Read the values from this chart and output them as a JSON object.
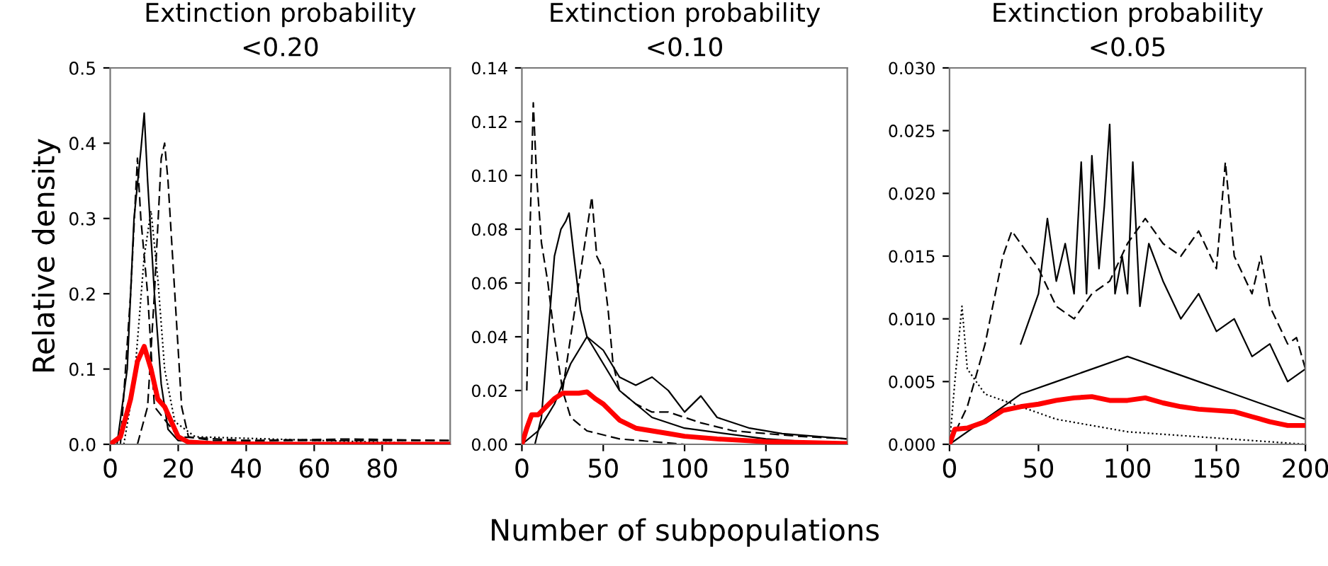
{
  "chart_data": [
    {
      "type": "line",
      "title": "Extinction probability\n<0.20",
      "ylabel": "Relative density",
      "xlim": [
        0,
        100
      ],
      "xticks": [
        0,
        20,
        40,
        60,
        80
      ],
      "ylim": [
        0,
        0.5
      ],
      "yticks": [
        {
          "value": 0,
          "label": "0.0"
        },
        0.1,
        0.2,
        0.3,
        0.4,
        0.5
      ],
      "series": [
        {
          "color": "#000000",
          "line_style": "solid",
          "x": [
            2,
            5,
            7,
            9,
            10,
            11,
            13,
            15,
            17,
            20,
            30,
            100
          ],
          "values": [
            0,
            0.1,
            0.3,
            0.39,
            0.44,
            0.35,
            0.2,
            0.08,
            0.02,
            0.005,
            0.003,
            0
          ]
        },
        {
          "color": "#000000",
          "line_style": "dashed",
          "x": [
            8,
            11,
            13,
            15,
            16,
            17,
            19,
            21,
            23,
            30,
            60,
            100
          ],
          "values": [
            0,
            0.05,
            0.2,
            0.38,
            0.4,
            0.35,
            0.2,
            0.05,
            0.01,
            0.005,
            0.005,
            0.005
          ]
        },
        {
          "color": "#000000",
          "line_style": "dotted",
          "x": [
            4,
            7,
            10,
            12,
            14,
            16,
            19,
            25,
            40,
            100
          ],
          "values": [
            0,
            0.08,
            0.25,
            0.31,
            0.22,
            0.1,
            0.03,
            0.01,
            0.008,
            0
          ]
        },
        {
          "color": "#000000",
          "line_style": "dashed",
          "x": [
            3,
            6,
            8,
            9,
            11,
            13,
            20,
            40,
            70,
            100
          ],
          "values": [
            0,
            0.2,
            0.38,
            0.3,
            0.2,
            0.05,
            0.01,
            0.005,
            0.007,
            0.005
          ]
        },
        {
          "color": "#ff0000",
          "line_style": "solid",
          "x": [
            0,
            3,
            6,
            8,
            10,
            12,
            14,
            16,
            18,
            20,
            23,
            30,
            50,
            100
          ],
          "values": [
            0,
            0.01,
            0.06,
            0.11,
            0.13,
            0.1,
            0.06,
            0.05,
            0.03,
            0.01,
            0.003,
            0.001,
            0,
            0
          ]
        }
      ]
    },
    {
      "type": "line",
      "title": "Extinction probability\n<0.10",
      "xlabel": "Number of subpopulations",
      "xlim": [
        0,
        200
      ],
      "xticks": [
        0,
        50,
        100,
        150
      ],
      "ylim": [
        0,
        0.14
      ],
      "yticks": [
        {
          "value": 0,
          "label": "0.00"
        },
        0.02,
        0.04,
        0.06,
        0.08,
        {
          "value": 0.1,
          "label": "0.10"
        },
        0.12,
        0.14
      ],
      "series": [
        {
          "color": "#000000",
          "line_style": "dashed",
          "x": [
            3,
            5,
            7,
            9,
            12,
            16,
            20,
            25,
            30,
            40,
            60,
            100
          ],
          "values": [
            0.02,
            0.08,
            0.127,
            0.1,
            0.075,
            0.06,
            0.04,
            0.02,
            0.01,
            0.005,
            0.002,
            0
          ]
        },
        {
          "color": "#000000",
          "line_style": "dashed",
          "x": [
            25,
            30,
            35,
            40,
            43,
            46,
            50,
            53,
            56,
            60,
            70,
            80,
            90,
            100,
            110,
            130,
            150,
            170,
            200
          ],
          "values": [
            0.02,
            0.04,
            0.06,
            0.08,
            0.092,
            0.07,
            0.065,
            0.05,
            0.03,
            0.02,
            0.015,
            0.012,
            0.012,
            0.01,
            0.008,
            0.005,
            0.004,
            0.003,
            0.002
          ]
        },
        {
          "color": "#000000",
          "line_style": "solid",
          "x": [
            8,
            12,
            16,
            20,
            24,
            27,
            29,
            32,
            36,
            40,
            45,
            50,
            60,
            70,
            80,
            100,
            150,
            200
          ],
          "values": [
            0,
            0.01,
            0.04,
            0.07,
            0.08,
            0.083,
            0.086,
            0.07,
            0.05,
            0.04,
            0.035,
            0.03,
            0.02,
            0.015,
            0.01,
            0.006,
            0.002,
            0
          ]
        },
        {
          "color": "#000000",
          "line_style": "solid",
          "x": [
            0,
            10,
            20,
            30,
            40,
            50,
            60,
            70,
            80,
            90,
            100,
            110,
            120,
            140,
            160,
            180,
            200
          ],
          "values": [
            0,
            0.005,
            0.015,
            0.03,
            0.04,
            0.035,
            0.025,
            0.022,
            0.025,
            0.02,
            0.012,
            0.018,
            0.01,
            0.006,
            0.004,
            0.003,
            0.002
          ]
        },
        {
          "color": "#ff0000",
          "line_style": "solid",
          "x": [
            0,
            3,
            6,
            10,
            15,
            20,
            25,
            35,
            40,
            45,
            50,
            55,
            60,
            70,
            80,
            90,
            100,
            120,
            150,
            200
          ],
          "values": [
            0,
            0.006,
            0.011,
            0.011,
            0.014,
            0.017,
            0.019,
            0.019,
            0.0195,
            0.017,
            0.015,
            0.012,
            0.009,
            0.006,
            0.005,
            0.004,
            0.003,
            0.002,
            0.001,
            0.0003
          ]
        }
      ]
    },
    {
      "type": "line",
      "title": "Extinction probability\n<0.05",
      "xlim": [
        0,
        200
      ],
      "xticks": [
        0,
        50,
        100,
        150,
        200
      ],
      "ylim": [
        0,
        0.03
      ],
      "yticks": [
        {
          "value": 0,
          "label": "0.000"
        },
        {
          "value": 0.005,
          "label": "0.005"
        },
        {
          "value": 0.01,
          "label": "0.010"
        },
        {
          "value": 0.015,
          "label": "0.015"
        },
        {
          "value": 0.02,
          "label": "0.020"
        },
        {
          "value": 0.025,
          "label": "0.025"
        },
        {
          "value": 0.03,
          "label": "0.030"
        }
      ],
      "series": [
        {
          "color": "#000000",
          "line_style": "solid",
          "x": [
            40,
            50,
            55,
            60,
            65,
            70,
            74,
            77,
            80,
            84,
            87,
            90,
            93,
            97,
            100,
            103,
            107,
            112,
            120,
            130,
            140,
            150,
            160,
            170,
            180,
            190,
            200
          ],
          "values": [
            0.008,
            0.012,
            0.018,
            0.013,
            0.016,
            0.012,
            0.0225,
            0.012,
            0.023,
            0.014,
            0.019,
            0.0255,
            0.012,
            0.015,
            0.012,
            0.0225,
            0.011,
            0.016,
            0.013,
            0.01,
            0.012,
            0.009,
            0.01,
            0.007,
            0.008,
            0.005,
            0.006
          ]
        },
        {
          "color": "#000000",
          "line_style": "dashed",
          "x": [
            0,
            10,
            20,
            30,
            35,
            40,
            50,
            60,
            70,
            80,
            90,
            100,
            110,
            120,
            130,
            140,
            150,
            155,
            160,
            170,
            175,
            180,
            190,
            195,
            200
          ],
          "values": [
            0,
            0.003,
            0.008,
            0.015,
            0.017,
            0.016,
            0.014,
            0.011,
            0.01,
            0.012,
            0.013,
            0.016,
            0.018,
            0.016,
            0.015,
            0.017,
            0.014,
            0.0225,
            0.015,
            0.012,
            0.015,
            0.011,
            0.008,
            0.0085,
            0.006
          ]
        },
        {
          "color": "#000000",
          "line_style": "dotted",
          "x": [
            0,
            3,
            7,
            10,
            20,
            40,
            60,
            100,
            200
          ],
          "values": [
            0,
            0.005,
            0.011,
            0.006,
            0.004,
            0.003,
            0.002,
            0.001,
            0
          ]
        },
        {
          "color": "#000000",
          "line_style": "solid",
          "x": [
            0,
            20,
            40,
            60,
            80,
            100,
            120,
            140,
            160,
            180,
            200
          ],
          "values": [
            0,
            0.002,
            0.004,
            0.005,
            0.006,
            0.007,
            0.006,
            0.005,
            0.004,
            0.003,
            0.002
          ]
        },
        {
          "color": "#ff0000",
          "line_style": "solid",
          "x": [
            0,
            3,
            10,
            20,
            30,
            40,
            50,
            60,
            70,
            80,
            90,
            100,
            110,
            120,
            130,
            140,
            150,
            160,
            170,
            180,
            190,
            200
          ],
          "values": [
            0,
            0.0012,
            0.0013,
            0.0018,
            0.0027,
            0.003,
            0.0032,
            0.0035,
            0.0037,
            0.0038,
            0.0035,
            0.0035,
            0.0037,
            0.0033,
            0.003,
            0.0028,
            0.0027,
            0.0026,
            0.0022,
            0.0018,
            0.0015,
            0.0015
          ]
        }
      ]
    }
  ]
}
